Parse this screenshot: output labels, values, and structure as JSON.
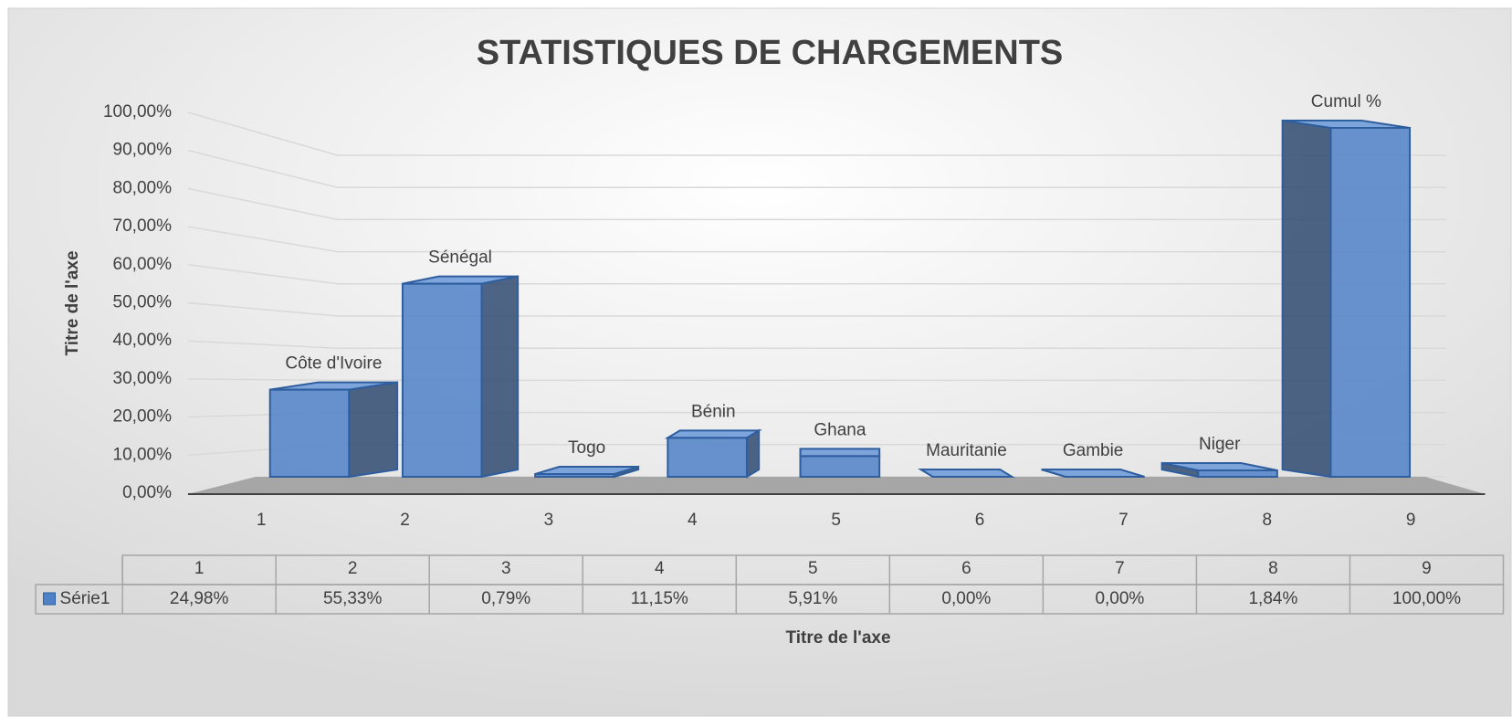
{
  "chart_data": {
    "type": "bar3d",
    "title": "STATISTIQUES DE CHARGEMENTS",
    "y_axis_title": "Titre de l'axe",
    "x_axis_title": "Titre de l'axe",
    "categories": [
      1,
      2,
      3,
      4,
      5,
      6,
      7,
      8,
      9
    ],
    "data_labels": [
      "Côte d'Ivoire",
      "Sénégal",
      "Togo",
      "Bénin",
      "Ghana",
      "Mauritanie",
      "Gambie",
      "Niger",
      "Cumul %"
    ],
    "series": [
      {
        "name": "Série1",
        "color": "#4f81c7",
        "values": [
          24.98,
          55.33,
          0.79,
          11.15,
          5.91,
          0,
          0,
          1.84,
          100
        ],
        "value_labels": [
          "24,98%",
          "55,33%",
          "0,79%",
          "11,15%",
          "5,91%",
          "0,00%",
          "0,00%",
          "1,84%",
          "100,00%"
        ]
      }
    ],
    "ylim": [
      0,
      100
    ],
    "yticks": [
      {
        "value": 0,
        "label": "0,00%"
      },
      {
        "value": 10,
        "label": "10,00%"
      },
      {
        "value": 20,
        "label": "20,00%"
      },
      {
        "value": 30,
        "label": "30,00%"
      },
      {
        "value": 40,
        "label": "40,00%"
      },
      {
        "value": 50,
        "label": "50,00%"
      },
      {
        "value": 60,
        "label": "60,00%"
      },
      {
        "value": 70,
        "label": "70,00%"
      },
      {
        "value": 80,
        "label": "80,00%"
      },
      {
        "value": 90,
        "label": "90,00%"
      },
      {
        "value": 100,
        "label": "100,00%"
      }
    ],
    "grid": true,
    "data_table": true
  }
}
